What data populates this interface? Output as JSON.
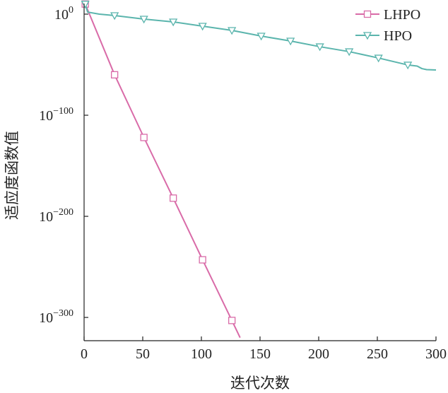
{
  "chart_data": {
    "type": "line",
    "title": "",
    "xlabel": "迭代次数",
    "ylabel": "适应度函数值",
    "xlim": [
      0,
      300
    ],
    "ylim": [
      1e-323,
      30000000000.0
    ],
    "yscale": "log",
    "grid": false,
    "legend_position": "top-right",
    "xticks": [
      0,
      50,
      100,
      150,
      200,
      250,
      300
    ],
    "xtick_labels": [
      "0",
      "50",
      "100",
      "150",
      "200",
      "250",
      "300"
    ],
    "yticks": [
      {
        "value": 1,
        "base": "10",
        "exp": "0"
      },
      {
        "value": 1e-100,
        "base": "10",
        "exp": "−100"
      },
      {
        "value": 1e-200,
        "base": "10",
        "exp": "−200"
      },
      {
        "value": 1e-300,
        "base": "10",
        "exp": "−300"
      }
    ],
    "series": [
      {
        "name": "LHPO",
        "color": "#d96ba8",
        "marker": "square",
        "x": [
          1,
          26,
          51,
          76,
          101,
          126,
          133
        ],
        "y": [
          10000000000.0,
          1e-60,
          1e-122,
          1e-182,
          1e-243,
          1e-303,
          1e-320
        ],
        "marker_x": [
          1,
          26,
          51,
          76,
          101,
          126
        ]
      },
      {
        "name": "HPO",
        "color": "#5bb5ad",
        "marker": "triangle-down",
        "x": [
          1,
          3,
          13,
          26,
          51,
          76,
          101,
          126,
          151,
          176,
          201,
          226,
          251,
          276,
          284,
          288,
          292,
          300
        ],
        "y": [
          10000000000.0,
          100.0,
          1,
          0.04,
          1.3e-05,
          2e-08,
          1.3e-12,
          8e-17,
          2e-22,
          2.5e-27,
          6e-33,
          8e-38,
          4e-44,
          5e-51,
          4e-52,
          1.3e-54,
          1.3e-55,
          6e-56
        ],
        "marker_x": [
          1,
          26,
          51,
          76,
          101,
          126,
          151,
          176,
          201,
          226,
          251,
          276
        ]
      }
    ]
  }
}
